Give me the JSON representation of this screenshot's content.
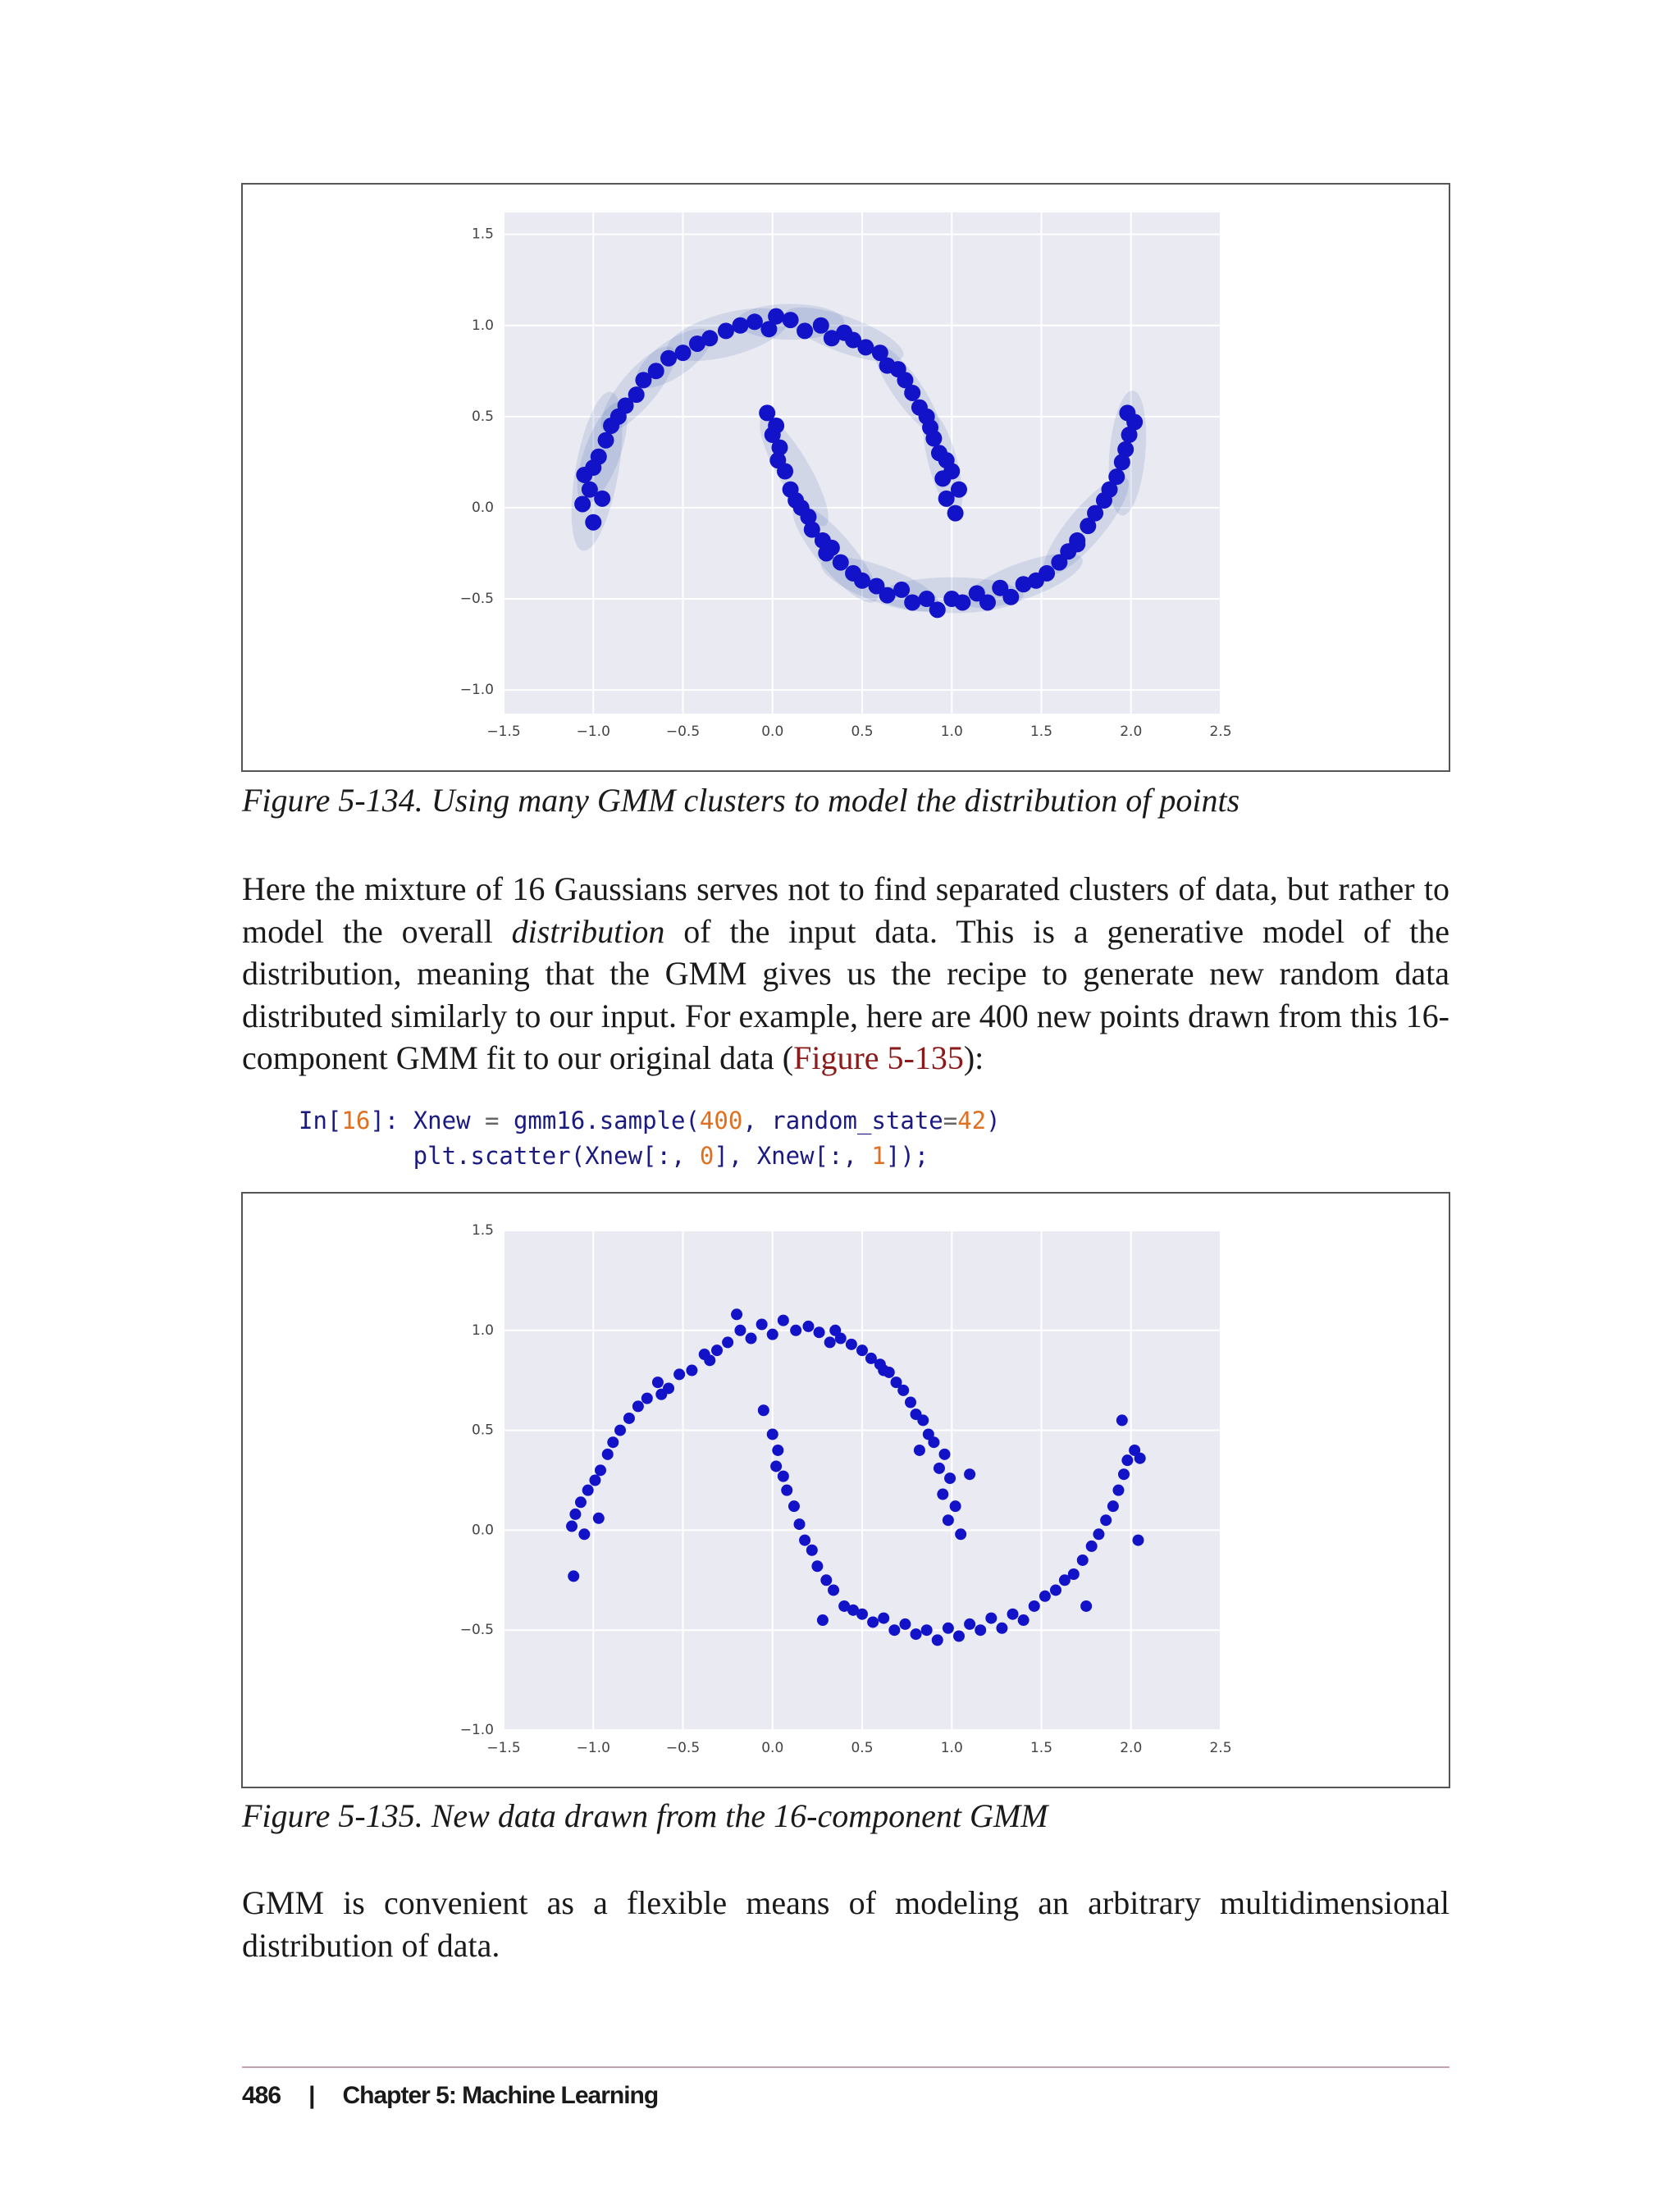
{
  "document": {
    "caption1": "Figure 5-134. Using many GMM clusters to model the distribution of points",
    "paragraph1": [
      "Here the mixture of 16 Gaussians serves not to find separated clusters of data, but rather to model the overall ",
      "distribution",
      " of the input data. This is a generative model of the distribution, meaning that the GMM gives us the recipe to generate new random data distributed similarly to our input. For example, here are 400 new points drawn from this 16-component GMM fit to our original data (",
      "Figure 5-135",
      "):"
    ],
    "code": [
      [
        "In[",
        "16",
        "]: ",
        "Xnew",
        " = ",
        "gmm16.sample(",
        "400",
        ", ",
        "random_state",
        "=",
        "42",
        ")"
      ],
      [
        "plt.scatter(Xnew[:, ",
        "0",
        "], Xnew[:, ",
        "1",
        "]);"
      ]
    ],
    "caption2": "Figure 5-135. New data drawn from the 16-component GMM",
    "paragraph2": "GMM is convenient as a flexible means of modeling an arbitrary multidimensional distribution of data.",
    "footer": {
      "page": "486",
      "separator": "|",
      "chapter": "Chapter 5: Machine Learning"
    }
  },
  "chart_data": [
    {
      "type": "scatter",
      "color": "#1212c8",
      "background": "#eaeaf2",
      "grid": true,
      "xlim": [
        -1.5,
        2.5
      ],
      "ylim": [
        -1.13,
        1.62
      ],
      "xticks": [
        {
          "value": -1.5,
          "label": "−1.5"
        },
        {
          "value": -1,
          "label": "−1.0"
        },
        {
          "value": -0.5,
          "label": "−0.5"
        },
        {
          "value": 0,
          "label": "0.0"
        },
        0.5,
        {
          "value": 1,
          "label": "1.0"
        },
        1.5,
        {
          "value": 2,
          "label": "2.0"
        },
        2.5
      ],
      "yticks": [
        {
          "value": -1,
          "label": "−1.0"
        },
        {
          "value": -0.5,
          "label": "−0.5"
        },
        {
          "value": 0,
          "label": "0.0"
        },
        0.5,
        {
          "value": 1,
          "label": "1.0"
        },
        1.5
      ],
      "x": [
        1.02,
        0.97,
        1.04,
        0.95,
        1.0,
        0.93,
        0.97,
        0.9,
        0.88,
        0.86,
        0.82,
        0.78,
        0.74,
        0.7,
        0.64,
        0.6,
        0.52,
        0.45,
        0.4,
        0.33,
        0.27,
        0.18,
        0.1,
        0.02,
        -0.02,
        -0.1,
        -0.18,
        -0.26,
        -0.35,
        -0.42,
        -0.5,
        -0.58,
        -0.65,
        -0.72,
        -0.76,
        -0.82,
        -0.86,
        -0.9,
        -0.93,
        -0.97,
        -1.0,
        -1.05,
        -1.02,
        -1.06,
        -1.0,
        -0.95,
        -0.03,
        0.02,
        0.0,
        0.04,
        0.03,
        0.07,
        0.1,
        0.13,
        0.16,
        0.2,
        0.22,
        0.28,
        0.33,
        0.38,
        0.45,
        0.5,
        0.58,
        0.64,
        0.72,
        0.78,
        0.86,
        0.92,
        1.0,
        1.06,
        1.14,
        1.2,
        1.27,
        1.33,
        1.4,
        1.47,
        1.53,
        1.6,
        1.65,
        1.7,
        1.76,
        1.8,
        1.85,
        1.88,
        1.92,
        1.95,
        1.97,
        1.99,
        2.02,
        1.98,
        1.7,
        0.3
      ],
      "values": [
        -0.03,
        0.05,
        0.1,
        0.16,
        0.2,
        0.3,
        0.26,
        0.38,
        0.44,
        0.5,
        0.55,
        0.63,
        0.7,
        0.76,
        0.78,
        0.85,
        0.88,
        0.92,
        0.96,
        0.93,
        1.0,
        0.97,
        1.03,
        1.05,
        0.98,
        1.02,
        1.0,
        0.97,
        0.93,
        0.9,
        0.85,
        0.82,
        0.75,
        0.7,
        0.62,
        0.56,
        0.5,
        0.45,
        0.37,
        0.28,
        0.22,
        0.18,
        0.1,
        0.02,
        -0.08,
        0.05,
        0.52,
        0.45,
        0.4,
        0.33,
        0.26,
        0.2,
        0.1,
        0.04,
        0.0,
        -0.05,
        -0.12,
        -0.18,
        -0.22,
        -0.3,
        -0.36,
        -0.4,
        -0.43,
        -0.48,
        -0.45,
        -0.52,
        -0.5,
        -0.56,
        -0.5,
        -0.52,
        -0.47,
        -0.52,
        -0.44,
        -0.49,
        -0.42,
        -0.4,
        -0.36,
        -0.3,
        -0.24,
        -0.18,
        -0.1,
        -0.03,
        0.04,
        0.1,
        0.17,
        0.25,
        0.32,
        0.4,
        0.47,
        0.52,
        -0.2,
        -0.25
      ],
      "components_color": "#3a5fa8",
      "components": [
        {
          "x": -0.98,
          "y": 0.2,
          "rx": 0.45,
          "ry": 0.12,
          "angle": 80
        },
        {
          "x": -0.95,
          "y": 0.3,
          "rx": 0.3,
          "ry": 0.1,
          "angle": 70
        },
        {
          "x": -0.75,
          "y": 0.65,
          "rx": 0.3,
          "ry": 0.1,
          "angle": 50
        },
        {
          "x": -0.55,
          "y": 0.82,
          "rx": 0.25,
          "ry": 0.1,
          "angle": 35
        },
        {
          "x": -0.25,
          "y": 0.95,
          "rx": 0.35,
          "ry": 0.12,
          "angle": 15
        },
        {
          "x": 0.1,
          "y": 1.02,
          "rx": 0.3,
          "ry": 0.1,
          "angle": 0
        },
        {
          "x": 0.4,
          "y": 0.95,
          "rx": 0.35,
          "ry": 0.1,
          "angle": -20
        },
        {
          "x": 0.75,
          "y": 0.65,
          "rx": 0.3,
          "ry": 0.08,
          "angle": -55
        },
        {
          "x": 0.95,
          "y": 0.25,
          "rx": 0.3,
          "ry": 0.08,
          "angle": -75
        },
        {
          "x": 0.12,
          "y": 0.2,
          "rx": 0.35,
          "ry": 0.09,
          "angle": -60
        },
        {
          "x": 0.35,
          "y": -0.25,
          "rx": 0.35,
          "ry": 0.1,
          "angle": -50
        },
        {
          "x": 0.6,
          "y": -0.42,
          "rx": 0.35,
          "ry": 0.1,
          "angle": -20
        },
        {
          "x": 1.0,
          "y": -0.48,
          "rx": 0.4,
          "ry": 0.1,
          "angle": 0
        },
        {
          "x": 1.4,
          "y": -0.4,
          "rx": 0.35,
          "ry": 0.1,
          "angle": 20
        },
        {
          "x": 1.75,
          "y": -0.1,
          "rx": 0.35,
          "ry": 0.1,
          "angle": 50
        },
        {
          "x": 1.98,
          "y": 0.3,
          "rx": 0.35,
          "ry": 0.1,
          "angle": 85
        }
      ]
    },
    {
      "type": "scatter",
      "color": "#1212c8",
      "background": "#eaeaf2",
      "grid": true,
      "xlim": [
        -1.5,
        2.5
      ],
      "ylim": [
        -1.0,
        1.5
      ],
      "xticks": [
        {
          "value": -1.5,
          "label": "−1.5"
        },
        {
          "value": -1,
          "label": "−1.0"
        },
        {
          "value": -0.5,
          "label": "−0.5"
        },
        {
          "value": 0,
          "label": "0.0"
        },
        0.5,
        {
          "value": 1,
          "label": "1.0"
        },
        1.5,
        {
          "value": 2,
          "label": "2.0"
        },
        2.5
      ],
      "yticks": [
        {
          "value": -1,
          "label": "−1.0"
        },
        {
          "value": -0.5,
          "label": "−0.5"
        },
        {
          "value": 0,
          "label": "0.0"
        },
        0.5,
        {
          "value": 1,
          "label": "1.0"
        },
        1.5
      ],
      "x": [
        1.05,
        0.98,
        1.02,
        0.95,
        0.99,
        0.93,
        0.96,
        0.9,
        0.87,
        0.84,
        0.8,
        0.77,
        0.73,
        0.69,
        0.65,
        0.6,
        0.55,
        0.5,
        0.44,
        0.38,
        0.32,
        0.26,
        0.2,
        0.13,
        0.06,
        0.0,
        -0.06,
        -0.12,
        -0.18,
        -0.25,
        -0.31,
        -0.38,
        -0.45,
        -0.52,
        -0.58,
        -0.64,
        -0.7,
        -0.75,
        -0.8,
        -0.85,
        -0.89,
        -0.92,
        -0.96,
        -0.99,
        -1.03,
        -1.07,
        -1.1,
        -1.12,
        -1.05,
        -0.97,
        -1.11,
        0.62,
        0.35,
        -0.62,
        -0.2,
        0.82,
        1.1,
        -0.35,
        -0.05,
        0.0,
        0.03,
        0.02,
        0.06,
        0.08,
        0.12,
        0.15,
        0.18,
        0.22,
        0.25,
        0.3,
        0.34,
        0.4,
        0.45,
        0.5,
        0.56,
        0.62,
        0.68,
        0.74,
        0.8,
        0.86,
        0.92,
        0.98,
        1.04,
        1.1,
        1.16,
        1.22,
        1.28,
        1.34,
        1.4,
        1.46,
        1.52,
        1.58,
        1.63,
        1.68,
        1.73,
        1.78,
        1.82,
        1.86,
        1.9,
        1.93,
        1.96,
        1.98,
        2.02,
        2.05,
        1.95,
        1.75,
        2.04,
        0.28
      ],
      "values": [
        -0.02,
        0.05,
        0.12,
        0.18,
        0.26,
        0.31,
        0.38,
        0.44,
        0.48,
        0.55,
        0.58,
        0.64,
        0.7,
        0.74,
        0.79,
        0.83,
        0.86,
        0.9,
        0.93,
        0.96,
        0.94,
        0.99,
        1.02,
        1.0,
        1.05,
        0.98,
        1.03,
        0.96,
        1.0,
        0.94,
        0.9,
        0.88,
        0.8,
        0.78,
        0.71,
        0.74,
        0.66,
        0.62,
        0.56,
        0.5,
        0.44,
        0.38,
        0.3,
        0.25,
        0.2,
        0.14,
        0.08,
        0.02,
        -0.02,
        0.06,
        -0.23,
        0.8,
        1.0,
        0.68,
        1.08,
        0.4,
        0.28,
        0.85,
        0.6,
        0.48,
        0.4,
        0.32,
        0.27,
        0.2,
        0.12,
        0.03,
        -0.05,
        -0.1,
        -0.18,
        -0.25,
        -0.3,
        -0.38,
        -0.4,
        -0.42,
        -0.46,
        -0.44,
        -0.5,
        -0.47,
        -0.52,
        -0.5,
        -0.55,
        -0.49,
        -0.53,
        -0.47,
        -0.5,
        -0.44,
        -0.49,
        -0.42,
        -0.45,
        -0.38,
        -0.33,
        -0.3,
        -0.25,
        -0.22,
        -0.15,
        -0.08,
        -0.02,
        0.05,
        0.12,
        0.2,
        0.28,
        0.35,
        0.4,
        0.36,
        0.55,
        -0.38,
        -0.05,
        -0.45
      ]
    }
  ]
}
